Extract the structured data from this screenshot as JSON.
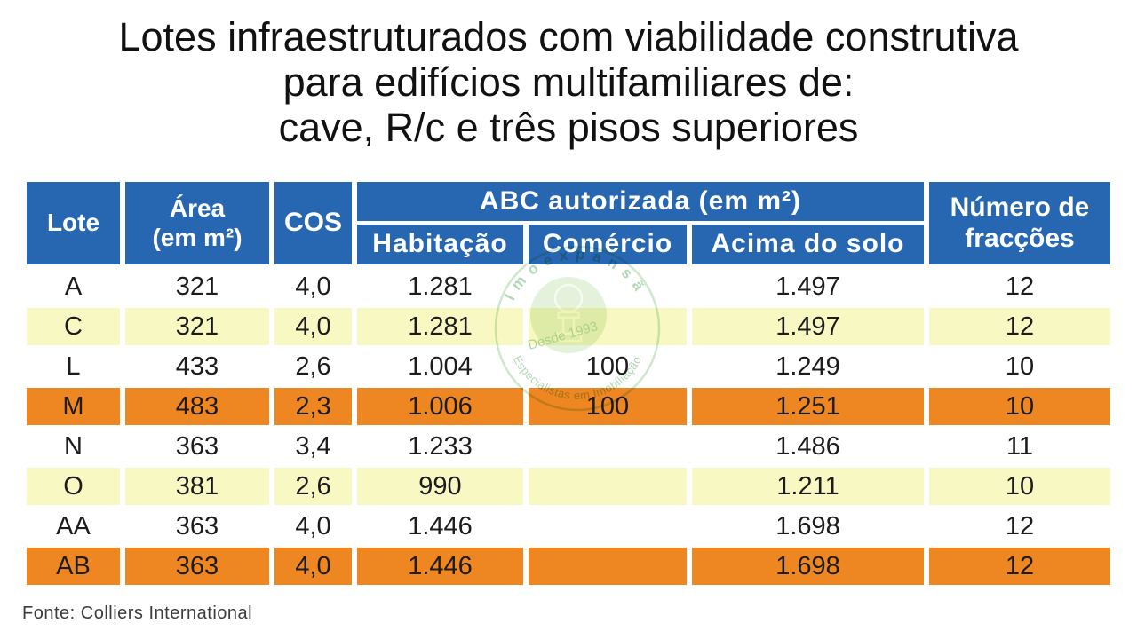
{
  "title": {
    "line1": "Lotes infraestruturados com viabilidade construtiva",
    "line2": "para edifícios multifamiliares de:",
    "line3": "cave, R/c e três pisos superiores"
  },
  "table": {
    "headers": {
      "lote": "Lote",
      "area": [
        "Área",
        "(em m²)"
      ],
      "cos": "COS",
      "abc_group": "ABC autorizada (em m²)",
      "habitacao": "Habitação",
      "comercio": "Comércio",
      "acima_do_solo": "Acima do solo",
      "fraccoes": [
        "Número de",
        "fracções"
      ]
    },
    "column_keys": [
      "lote",
      "area",
      "cos",
      "habitacao",
      "comercio",
      "acima-do-solo",
      "fraccoes"
    ],
    "rows": [
      {
        "color": "white",
        "cells": [
          "A",
          "321",
          "4,0",
          "1.281",
          "",
          "1.497",
          "12"
        ]
      },
      {
        "color": "yellow",
        "cells": [
          "C",
          "321",
          "4,0",
          "1.281",
          "",
          "1.497",
          "12"
        ]
      },
      {
        "color": "white",
        "cells": [
          "L",
          "433",
          "2,6",
          "1.004",
          "100",
          "1.249",
          "10"
        ]
      },
      {
        "color": "orange",
        "cells": [
          "M",
          "483",
          "2,3",
          "1.006",
          "100",
          "1.251",
          "10"
        ]
      },
      {
        "color": "white",
        "cells": [
          "N",
          "363",
          "3,4",
          "1.233",
          "",
          "1.486",
          "11"
        ]
      },
      {
        "color": "yellow",
        "cells": [
          "O",
          "381",
          "2,6",
          "990",
          "",
          "1.211",
          "10"
        ]
      },
      {
        "color": "white",
        "cells": [
          "AA",
          "363",
          "4,0",
          "1.446",
          "",
          "1.698",
          "12"
        ]
      },
      {
        "color": "orange",
        "cells": [
          "AB",
          "363",
          "4,0",
          "1.446",
          "",
          "1.698",
          "12"
        ]
      }
    ]
  },
  "watermark": {
    "arc_top": "Imoexpansão",
    "arc_bottom": "Especialistas em Imobiliação",
    "inner_text": "Desde 1993"
  },
  "footer": {
    "source": "Fonte: Colliers International"
  },
  "colors": {
    "header_blue": "#2767b2",
    "row_yellow": "#f8f8c2",
    "row_orange": "#ee8621",
    "row_white": "#ffffff",
    "text": "#1c1c1c",
    "watermark_green": "#5fb364"
  }
}
